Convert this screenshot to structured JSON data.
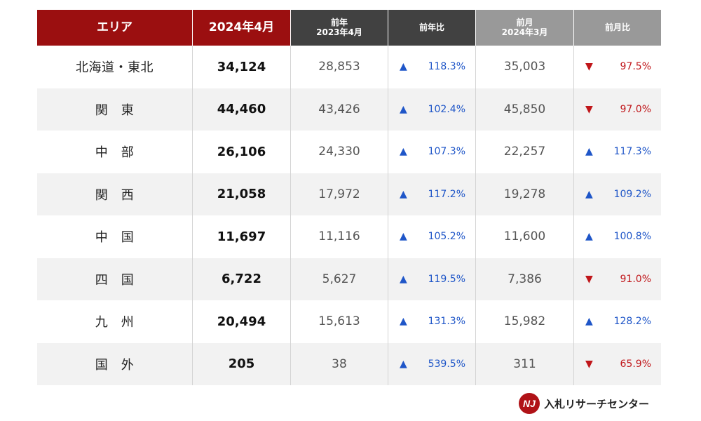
{
  "headers": {
    "area": "エリア",
    "current": "2024年4月",
    "prev_year_title": "前年",
    "prev_year_date": "2023年4月",
    "yoy": "前年比",
    "prev_month_title": "前月",
    "prev_month_date": "2024年3月",
    "mom": "前月比"
  },
  "rows": [
    {
      "area": "北海道・東北",
      "current": "34,124",
      "prev_year": "28,853",
      "yoy": "118.3%",
      "yoy_dir": "up",
      "prev_month": "35,003",
      "mom": "97.5%",
      "mom_dir": "down"
    },
    {
      "area": "関　東",
      "current": "44,460",
      "prev_year": "43,426",
      "yoy": "102.4%",
      "yoy_dir": "up",
      "prev_month": "45,850",
      "mom": "97.0%",
      "mom_dir": "down"
    },
    {
      "area": "中　部",
      "current": "26,106",
      "prev_year": "24,330",
      "yoy": "107.3%",
      "yoy_dir": "up",
      "prev_month": "22,257",
      "mom": "117.3%",
      "mom_dir": "up"
    },
    {
      "area": "関　西",
      "current": "21,058",
      "prev_year": "17,972",
      "yoy": "117.2%",
      "yoy_dir": "up",
      "prev_month": "19,278",
      "mom": "109.2%",
      "mom_dir": "up"
    },
    {
      "area": "中　国",
      "current": "11,697",
      "prev_year": "11,116",
      "yoy": "105.2%",
      "yoy_dir": "up",
      "prev_month": "11,600",
      "mom": "100.8%",
      "mom_dir": "up"
    },
    {
      "area": "四　国",
      "current": "6,722",
      "prev_year": "5,627",
      "yoy": "119.5%",
      "yoy_dir": "up",
      "prev_month": "7,386",
      "mom": "91.0%",
      "mom_dir": "down"
    },
    {
      "area": "九　州",
      "current": "20,494",
      "prev_year": "15,613",
      "yoy": "131.3%",
      "yoy_dir": "up",
      "prev_month": "15,982",
      "mom": "128.2%",
      "mom_dir": "up"
    },
    {
      "area": "国　外",
      "current": "205",
      "prev_year": "38",
      "yoy": "539.5%",
      "yoy_dir": "up",
      "prev_month": "311",
      "mom": "65.9%",
      "mom_dir": "down"
    }
  ],
  "logo": {
    "mark": "NJ",
    "text": "入札リサーチセンター"
  },
  "colors": {
    "header_red": "#9b0f10",
    "header_dark": "#414141",
    "header_gray": "#999999",
    "up": "#1f56c8",
    "down": "#c0161a",
    "row_alt": "#f2f2f2"
  }
}
